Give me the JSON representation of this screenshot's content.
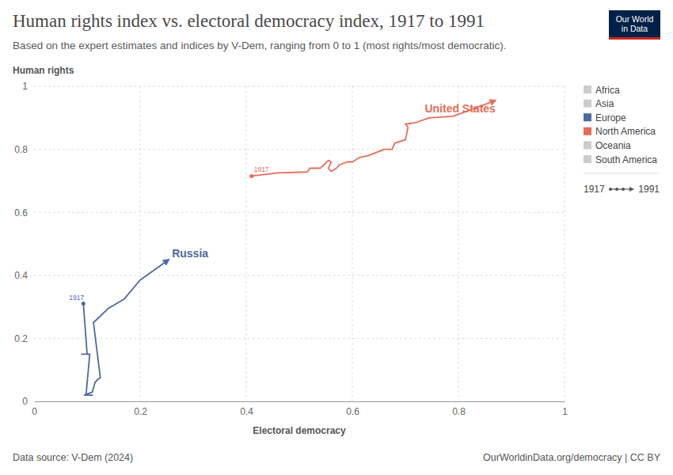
{
  "chart_data": {
    "type": "connected-scatter",
    "title": "Human rights index vs. electoral democracy index, 1917 to 1991",
    "subtitle": "Based on the expert estimates and indices by V-Dem, ranging from 0 to 1 (most rights/most democratic).",
    "logo": [
      "Our World",
      "in Data"
    ],
    "x_label": "Electoral democracy",
    "y_label": "Human rights",
    "source": "Data source: V-Dem (2024)",
    "credit": "OurWorldinData.org/democracy | CC BY",
    "xlim": [
      0,
      1
    ],
    "ylim": [
      0,
      1
    ],
    "xticks": [
      0,
      0.2,
      0.4,
      0.6,
      0.8,
      1
    ],
    "yticks": [
      0,
      0.2,
      0.4,
      0.6,
      0.8,
      1
    ],
    "grid": true,
    "legend": "right",
    "groups": [
      {
        "name": "Africa",
        "color": "#cccccc"
      },
      {
        "name": "Asia",
        "color": "#cccccc"
      },
      {
        "name": "Europe",
        "color": "#4c6a9c"
      },
      {
        "name": "North America",
        "color": "#e56e5a"
      },
      {
        "name": "Oceania",
        "color": "#cccccc"
      },
      {
        "name": "South America",
        "color": "#cccccc"
      }
    ],
    "time_range": [
      "1917",
      "1991"
    ],
    "series": [
      {
        "name": "Russia",
        "group": "Europe",
        "color": "#4c6a9c",
        "marker": "arrow",
        "start_label": "1917",
        "x": [
          0.093,
          0.1,
          0.09,
          0.105,
          0.098,
          0.11,
          0.095,
          0.11,
          0.115,
          0.12,
          0.125,
          0.112,
          0.14,
          0.17,
          0.2,
          0.254
        ],
        "values": [
          0.31,
          0.15,
          0.15,
          0.15,
          0.02,
          0.02,
          0.02,
          0.03,
          0.06,
          0.07,
          0.075,
          0.25,
          0.295,
          0.325,
          0.385,
          0.45
        ]
      },
      {
        "name": "United States",
        "group": "North America",
        "color": "#e56e5a",
        "marker": "arrow",
        "start_label": "1917",
        "x": [
          0.41,
          0.46,
          0.515,
          0.52,
          0.54,
          0.555,
          0.56,
          0.555,
          0.56,
          0.57,
          0.575,
          0.59,
          0.6,
          0.615,
          0.63,
          0.645,
          0.66,
          0.675,
          0.68,
          0.7,
          0.705,
          0.7,
          0.72,
          0.745,
          0.79,
          0.87
        ],
        "values": [
          0.715,
          0.725,
          0.728,
          0.74,
          0.74,
          0.765,
          0.76,
          0.74,
          0.73,
          0.74,
          0.75,
          0.76,
          0.76,
          0.775,
          0.78,
          0.79,
          0.8,
          0.8,
          0.82,
          0.83,
          0.87,
          0.88,
          0.885,
          0.9,
          0.905,
          0.955
        ]
      }
    ]
  }
}
